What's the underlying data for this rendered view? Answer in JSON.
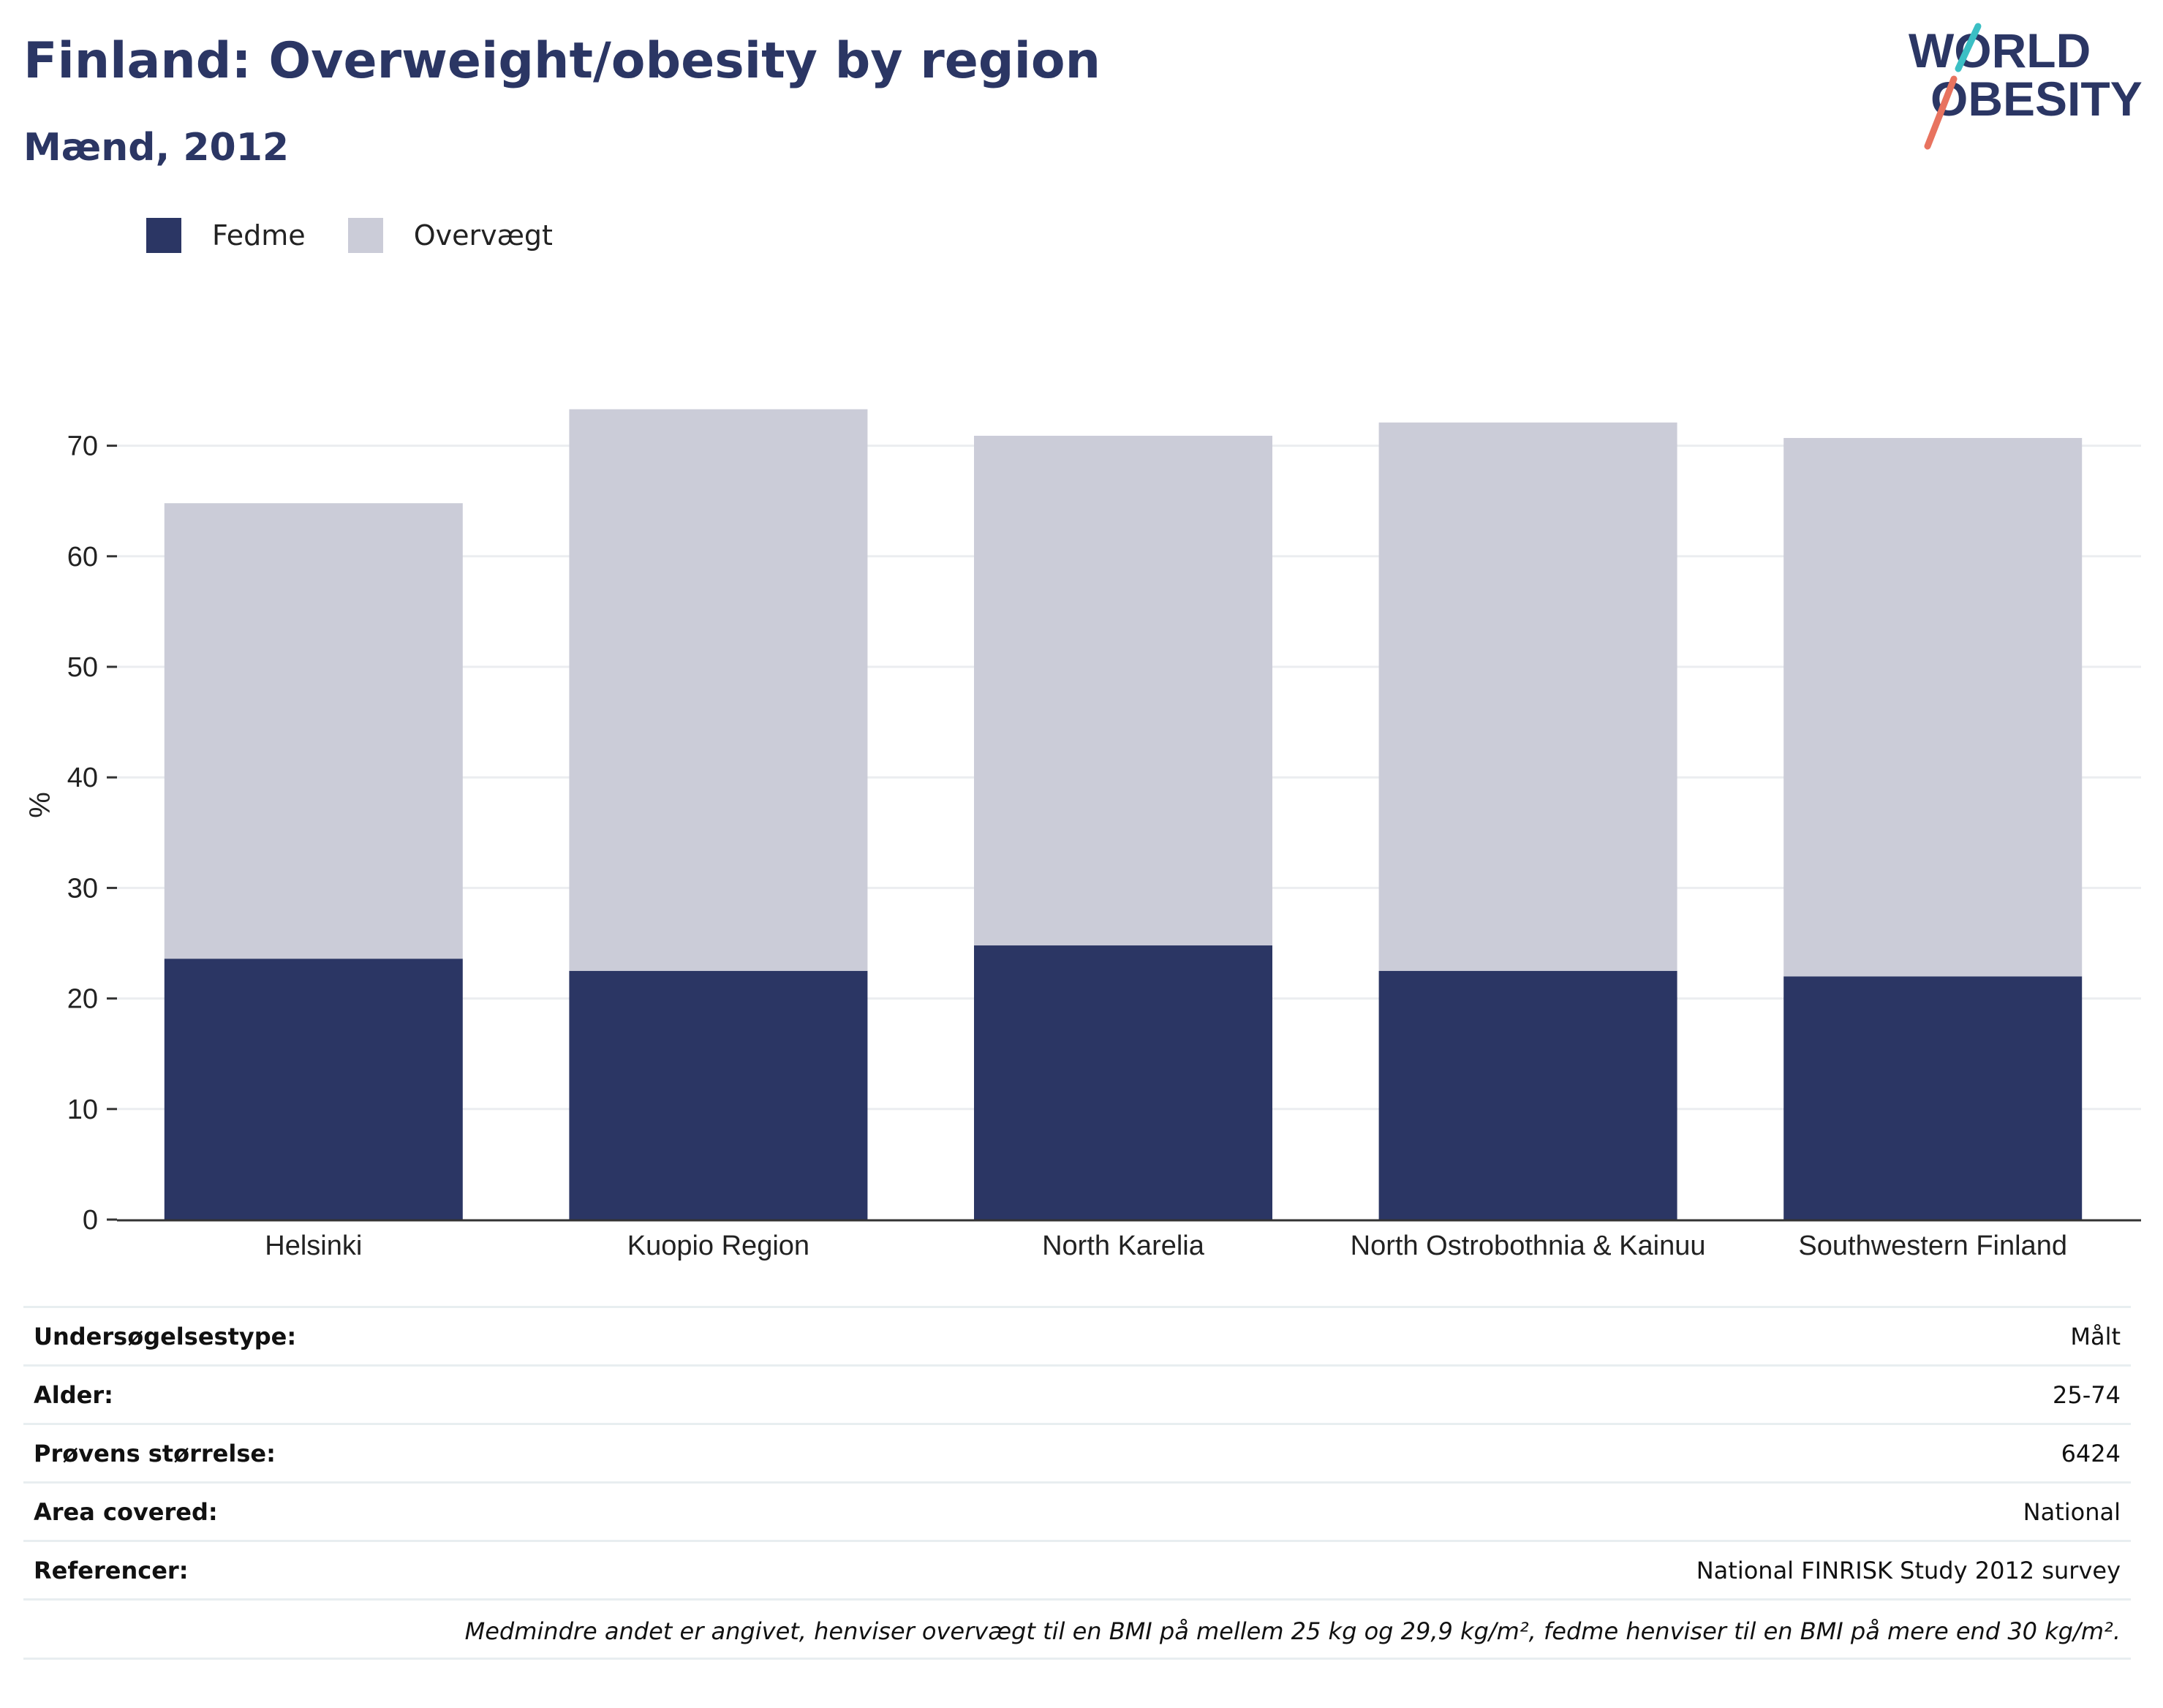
{
  "header": {
    "title": "Finland: Overweight/obesity by region",
    "subtitle": "Mænd, 2012"
  },
  "logo": {
    "line1": "WORLD",
    "line2": "OBESITY"
  },
  "legend": [
    {
      "label": "Fedme",
      "color": "#2b3664"
    },
    {
      "label": "Overvægt",
      "color": "#cbccd8"
    }
  ],
  "chart_data": {
    "type": "bar",
    "stacked": true,
    "categories": [
      "Helsinki",
      "Kuopio Region",
      "North Karelia",
      "North Ostrobothnia & Kainuu",
      "Southwestern Finland"
    ],
    "series": [
      {
        "name": "Fedme",
        "values": [
          23.6,
          22.5,
          24.8,
          22.5,
          22.0
        ],
        "color": "#2b3664"
      },
      {
        "name": "Overvægt",
        "values": [
          41.2,
          50.8,
          46.1,
          49.6,
          48.7
        ],
        "color": "#cbccd8"
      }
    ],
    "ylabel": "%",
    "ylim": [
      0,
      75
    ],
    "yticks": [
      0,
      10,
      20,
      30,
      40,
      50,
      60,
      70
    ],
    "grid": true,
    "legend_position": "top-left"
  },
  "details": [
    {
      "key": "Undersøgelsestype:",
      "value": "Målt"
    },
    {
      "key": "Alder:",
      "value": "25-74"
    },
    {
      "key": "Prøvens størrelse:",
      "value": "6424"
    },
    {
      "key": "Area covered:",
      "value": "National"
    },
    {
      "key": "Referencer:",
      "value": "National FINRISK Study 2012 survey"
    }
  ],
  "footnote": "Medmindre andet er angivet, henviser overvægt til en BMI på mellem 25 kg og 29,9 kg/m², fedme henviser til en BMI på mere end 30 kg/m²."
}
